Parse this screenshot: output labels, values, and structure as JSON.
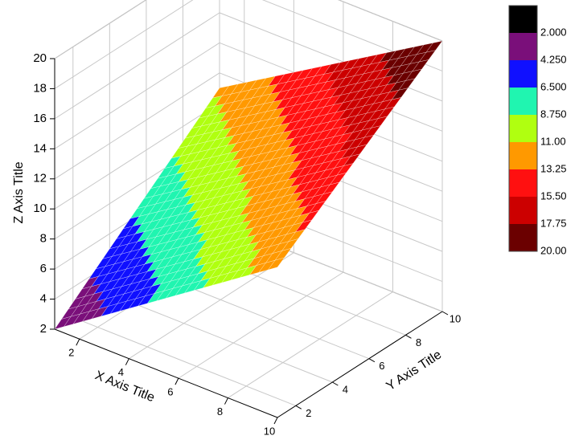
{
  "chart_data": {
    "type": "surface3d",
    "x_label": "X Axis Title",
    "y_label": "Y Axis Title",
    "z_label": "Z Axis Title",
    "x": [
      1,
      10
    ],
    "y": [
      1,
      10
    ],
    "z": [
      [
        2,
        11
      ],
      [
        12,
        20
      ]
    ],
    "xlim": [
      1,
      10
    ],
    "ylim": [
      1,
      10
    ],
    "zlim": [
      2,
      20
    ],
    "xticks": [
      2,
      4,
      6,
      8,
      10
    ],
    "yticks": [
      2,
      4,
      6,
      8,
      10
    ],
    "zticks": [
      2,
      4,
      6,
      8,
      10,
      12,
      14,
      16,
      18,
      20
    ],
    "grid": true,
    "colormap": {
      "levels": [
        {
          "value": 2,
          "label": "2.000"
        },
        {
          "value": 4.25,
          "label": "4.250"
        },
        {
          "value": 6.5,
          "label": "6.500"
        },
        {
          "value": 8.75,
          "label": "8.750"
        },
        {
          "value": 11,
          "label": "11.00"
        },
        {
          "value": 13.25,
          "label": "13.25"
        },
        {
          "value": 15.5,
          "label": "15.50"
        },
        {
          "value": 17.75,
          "label": "17.75"
        },
        {
          "value": 20,
          "label": "20.00"
        }
      ],
      "colors": [
        "#000000",
        "#7a0f7a",
        "#1010ff",
        "#20f5b0",
        "#b0ff10",
        "#ff9900",
        "#ff1010",
        "#cc0000",
        "#6b0000"
      ]
    }
  }
}
